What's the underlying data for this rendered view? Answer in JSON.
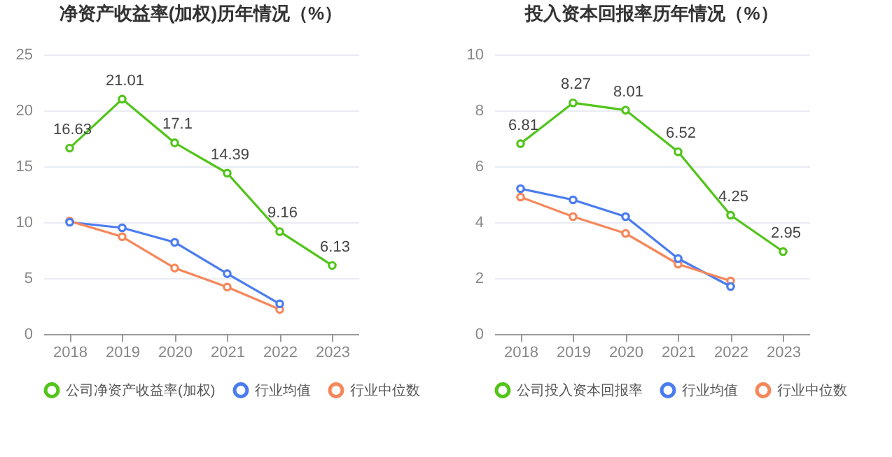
{
  "chart_data": [
    {
      "type": "line",
      "title": "净资产收益率(加权)历年情况（%）",
      "categories": [
        "2018",
        "2019",
        "2020",
        "2021",
        "2022",
        "2023"
      ],
      "ylim": [
        0,
        25
      ],
      "yticks": [
        0,
        5,
        10,
        15,
        20,
        25
      ],
      "grid": "y",
      "legend": "bottom",
      "marker": "circle",
      "series": [
        {
          "name": "公司净资产收益率(加权)",
          "color": "#52c41a",
          "values": [
            16.63,
            21.01,
            17.1,
            14.39,
            9.16,
            6.13
          ],
          "value_labels": [
            "16.63",
            "21.01",
            "17.1",
            "14.39",
            "9.16",
            "6.13"
          ]
        },
        {
          "name": "行业均值",
          "color": "#4a7cf0",
          "values": [
            10.0,
            9.5,
            8.2,
            5.4,
            2.7,
            null
          ]
        },
        {
          "name": "行业中位数",
          "color": "#f5875a",
          "values": [
            10.1,
            8.7,
            5.9,
            4.2,
            2.2,
            null
          ]
        }
      ]
    },
    {
      "type": "line",
      "title": "投入资本回报率历年情况（%）",
      "categories": [
        "2018",
        "2019",
        "2020",
        "2021",
        "2022",
        "2023"
      ],
      "ylim": [
        0,
        10
      ],
      "yticks": [
        0,
        2,
        4,
        6,
        8,
        10
      ],
      "grid": "y",
      "legend": "bottom",
      "marker": "circle",
      "series": [
        {
          "name": "公司投入资本回报率",
          "color": "#52c41a",
          "values": [
            6.81,
            8.27,
            8.01,
            6.52,
            4.25,
            2.95
          ],
          "value_labels": [
            "6.81",
            "8.27",
            "8.01",
            "6.52",
            "4.25",
            "2.95"
          ]
        },
        {
          "name": "行业均值",
          "color": "#4a7cf0",
          "values": [
            5.2,
            4.8,
            4.2,
            2.7,
            1.7,
            null
          ]
        },
        {
          "name": "行业中位数",
          "color": "#f5875a",
          "values": [
            4.9,
            4.2,
            3.6,
            2.5,
            1.9,
            null
          ]
        }
      ]
    }
  ]
}
